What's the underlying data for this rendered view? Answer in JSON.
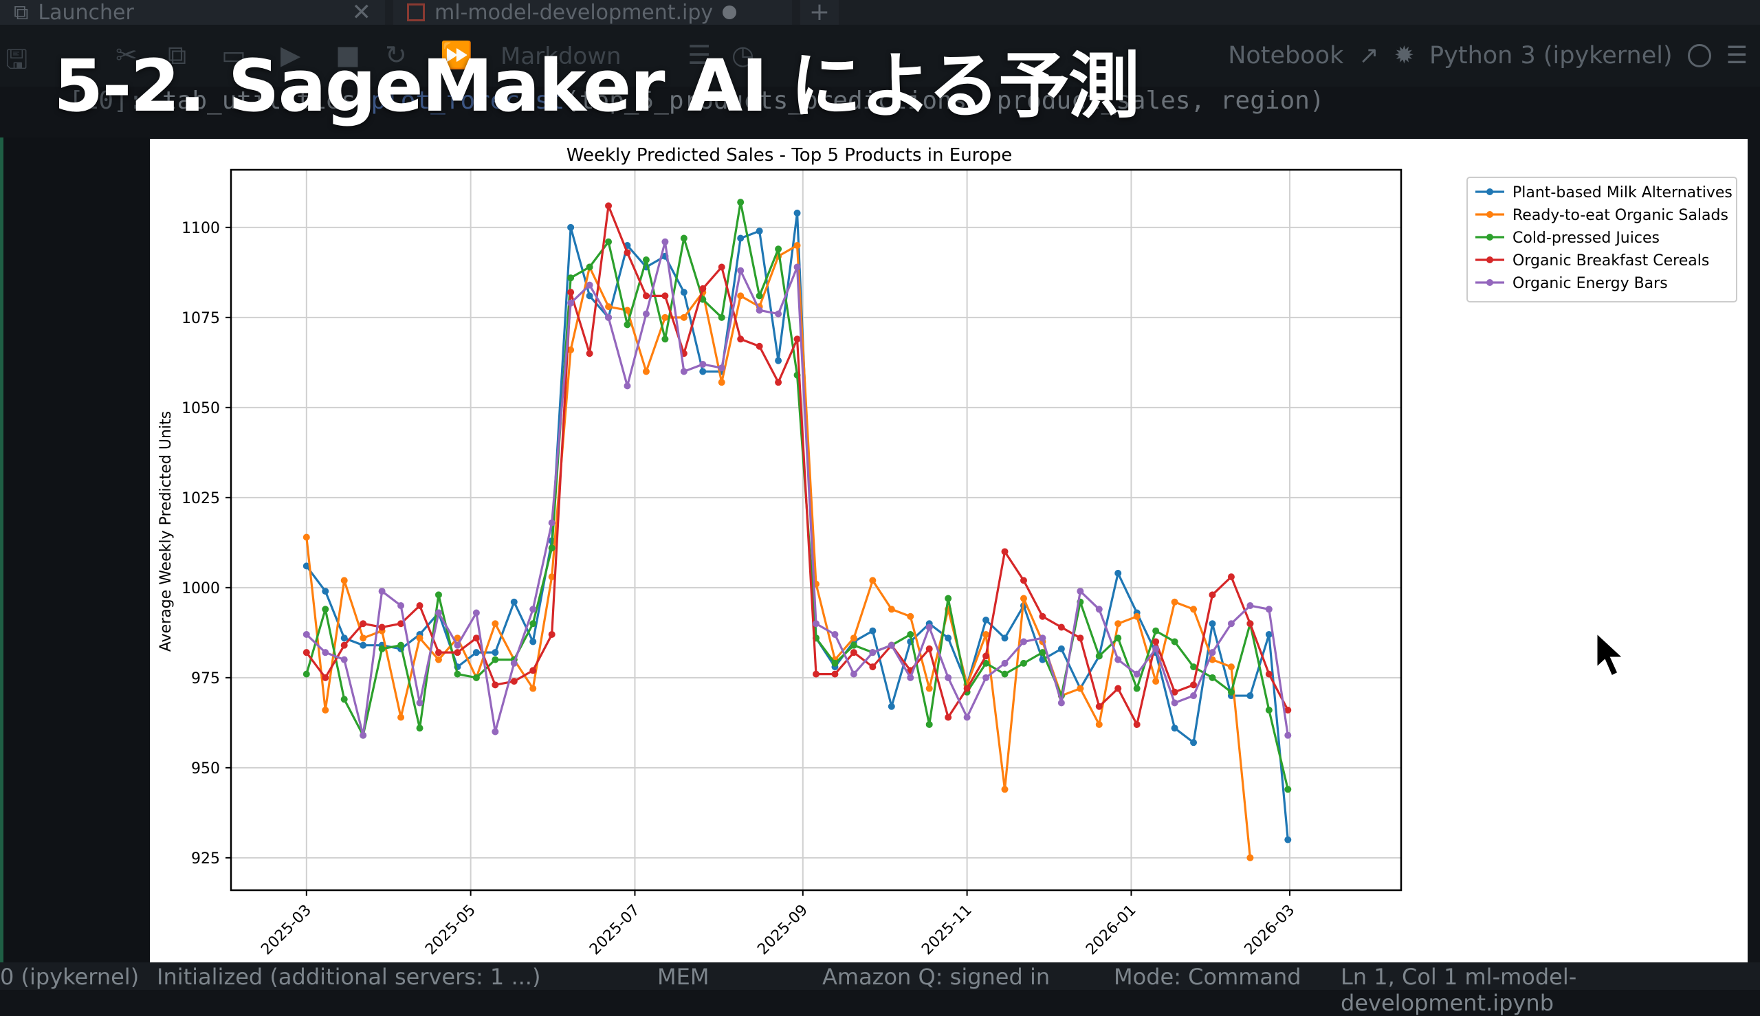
{
  "tabs": [
    {
      "label": "Launcher",
      "close": "✕"
    },
    {
      "label": "ml-model-development.ipy"
    }
  ],
  "new_tab_label": "+",
  "toolbar": {
    "cell_type": "Markdown",
    "notebook_label": "Notebook",
    "kernel": "Python 3 (ipykernel)"
  },
  "overlay_title": "5-2. SageMaker AI による予測",
  "cell": {
    "prompt": "[10]:",
    "code_prefix": "tab_utilities.",
    "code_fn": "plot_forecast",
    "code_args": "(top_5_products_predictions, product_sales, region)"
  },
  "status": {
    "left": "0 (ipykernel)",
    "init": "Initialized (additional servers: 1 ...)",
    "mem": "MEM",
    "q": "Amazon Q: signed in",
    "mode": "Mode: Command",
    "ln": "Ln 1, Col 1   ml-model-development.ipynb"
  },
  "chart_data": {
    "type": "line",
    "title": "Weekly Predicted Sales - Top 5 Products in Europe",
    "xlabel": "",
    "ylabel": "Average Weekly Predicted Units",
    "ylim": [
      916,
      1116
    ],
    "xlim_weeks": [
      -4,
      58
    ],
    "yticks": [
      925,
      950,
      975,
      1000,
      1025,
      1050,
      1075,
      1100
    ],
    "xticks": [
      {
        "label": "2025-03",
        "week": 0
      },
      {
        "label": "2025-05",
        "week": 8.7
      },
      {
        "label": "2025-07",
        "week": 17.4
      },
      {
        "label": "2025-09",
        "week": 26.3
      },
      {
        "label": "2025-11",
        "week": 35.0
      },
      {
        "label": "2026-01",
        "week": 43.7
      },
      {
        "label": "2026-03",
        "week": 52.1
      }
    ],
    "legend_placement": "outside-top-right",
    "grid": true,
    "series": [
      {
        "name": "Plant-based Milk Alternatives",
        "color": "#1f77b4",
        "values": [
          1006,
          999,
          986,
          984,
          984,
          983,
          987,
          993,
          978,
          982,
          982,
          996,
          985,
          1013,
          1100,
          1081,
          1075,
          1095,
          1089,
          1092,
          1082,
          1060,
          1060,
          1097,
          1099,
          1063,
          1104,
          986,
          978,
          985,
          988,
          967,
          985,
          990,
          986,
          973,
          991,
          986,
          995,
          980,
          983,
          972,
          981,
          1004,
          993,
          982,
          961,
          957,
          990,
          970,
          970,
          987,
          930
        ]
      },
      {
        "name": "Ready-to-eat Organic Salads",
        "color": "#ff7f0e",
        "values": [
          1014,
          966,
          1002,
          986,
          988,
          964,
          986,
          980,
          986,
          975,
          990,
          980,
          972,
          1003,
          1066,
          1089,
          1078,
          1077,
          1060,
          1075,
          1075,
          1082,
          1057,
          1081,
          1078,
          1092,
          1095,
          1001,
          980,
          986,
          1002,
          994,
          992,
          972,
          994,
          973,
          987,
          944,
          997,
          985,
          970,
          972,
          962,
          990,
          992,
          974,
          996,
          994,
          980,
          978,
          925
        ]
      },
      {
        "name": "Cold-pressed Juices",
        "color": "#2ca02c",
        "values": [
          976,
          994,
          969,
          959,
          983,
          984,
          961,
          998,
          976,
          975,
          980,
          980,
          990,
          1011,
          1086,
          1089,
          1096,
          1073,
          1091,
          1069,
          1097,
          1080,
          1075,
          1107,
          1081,
          1094,
          1059,
          986,
          979,
          984,
          982,
          984,
          987,
          962,
          997,
          971,
          979,
          976,
          979,
          982,
          970,
          996,
          981,
          986,
          972,
          988,
          985,
          978,
          975,
          971,
          990,
          966,
          944
        ]
      },
      {
        "name": "Organic Breakfast Cereals",
        "color": "#d62728",
        "values": [
          982,
          975,
          984,
          990,
          989,
          990,
          995,
          982,
          982,
          986,
          973,
          974,
          977,
          987,
          1082,
          1065,
          1106,
          1093,
          1081,
          1081,
          1065,
          1083,
          1089,
          1069,
          1067,
          1057,
          1069,
          976,
          976,
          982,
          978,
          984,
          977,
          983,
          964,
          972,
          981,
          1010,
          1002,
          992,
          989,
          986,
          967,
          972,
          962,
          985,
          971,
          973,
          998,
          1003,
          990,
          976,
          966
        ]
      },
      {
        "name": "Organic Energy Bars",
        "color": "#9467bd",
        "values": [
          987,
          982,
          980,
          959,
          999,
          995,
          968,
          993,
          984,
          993,
          960,
          979,
          994,
          1018,
          1079,
          1084,
          1075,
          1056,
          1076,
          1096,
          1060,
          1062,
          1061,
          1088,
          1077,
          1076,
          1089,
          990,
          987,
          976,
          982,
          984,
          975,
          989,
          975,
          964,
          975,
          979,
          985,
          986,
          968,
          999,
          994,
          980,
          976,
          983,
          968,
          970,
          982,
          990,
          995,
          994,
          959
        ]
      }
    ]
  }
}
